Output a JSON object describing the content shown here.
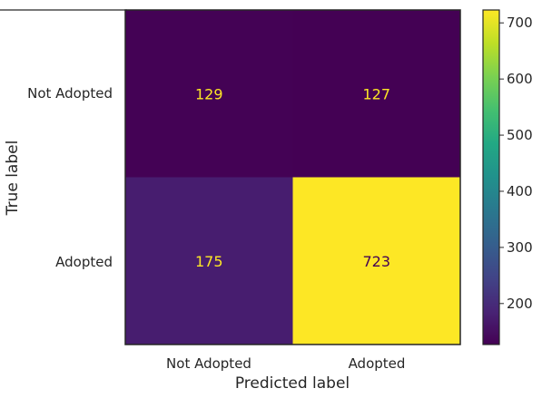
{
  "chart_data": {
    "type": "heatmap",
    "xlabel": "Predicted label",
    "ylabel": "True label",
    "x_categories": [
      "Not Adopted",
      "Adopted"
    ],
    "y_categories": [
      "Not Adopted",
      "Adopted"
    ],
    "matrix": [
      [
        129,
        127
      ],
      [
        175,
        723
      ]
    ],
    "colormap": "viridis",
    "colorbar": {
      "range": [
        127,
        723
      ],
      "ticks": [
        200,
        300,
        400,
        500,
        600,
        700
      ]
    },
    "text_colors": {
      "on_dark": "#fde725",
      "on_light": "#440154"
    },
    "grid": false
  }
}
